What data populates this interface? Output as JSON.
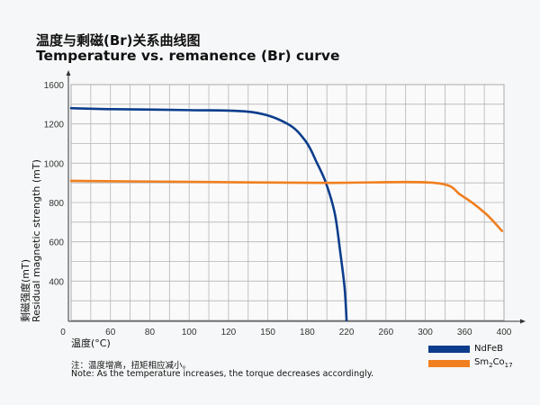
{
  "header": {
    "title_zh": "温度与剩磁(Br)关系曲线图",
    "title_en": "Temperature vs. remanence (Br) curve"
  },
  "chart_data": {
    "type": "line",
    "title": "Temperature vs. remanence (Br) curve",
    "xlabel": "温度(°C)",
    "ylabel_zh": "剩磁强度(mT)",
    "ylabel_en": "Residual magnetic strength (mT)",
    "x_ticks": [
      0,
      60,
      80,
      100,
      120,
      150,
      180,
      220,
      260,
      300,
      360,
      400
    ],
    "y_ticks": [
      400,
      600,
      800,
      1000,
      1200,
      1600
    ],
    "xlim": [
      0,
      400
    ],
    "ylim": [
      0,
      1600
    ],
    "axis_scale": "non-uniform, tick labels equally spaced",
    "grid": true,
    "legend_position": "bottom-right",
    "series": [
      {
        "name": "NdFeB",
        "color": "#0b3d8c",
        "points": [
          [
            0,
            1360
          ],
          [
            60,
            1350
          ],
          [
            100,
            1340
          ],
          [
            138,
            1320
          ],
          [
            165,
            1200
          ],
          [
            179,
            1110
          ],
          [
            190,
            1000
          ],
          [
            199,
            900
          ],
          [
            208,
            745
          ],
          [
            213.5,
            550
          ],
          [
            218,
            330
          ],
          [
            220,
            0
          ]
        ]
      },
      {
        "name": "Sm2Co17",
        "color": "#f07f1f",
        "points": [
          [
            0,
            910
          ],
          [
            100,
            905
          ],
          [
            200,
            900
          ],
          [
            314,
            900
          ],
          [
            355,
            836
          ],
          [
            381,
            745
          ],
          [
            398,
            655
          ]
        ]
      }
    ]
  },
  "legend": {
    "items": [
      {
        "label": "NdFeB",
        "base": "NdFeB",
        "color": "#0b3d8c"
      },
      {
        "label": "Sm2Co17",
        "base": "Sm",
        "sub1": "2",
        "mid": "Co",
        "sub2": "17",
        "color": "#f07f1f"
      }
    ]
  },
  "notes": {
    "zh": "注：温度增高，扭矩相应减小。",
    "en": "Note: As the temperature increases, the torque decreases accordingly."
  }
}
